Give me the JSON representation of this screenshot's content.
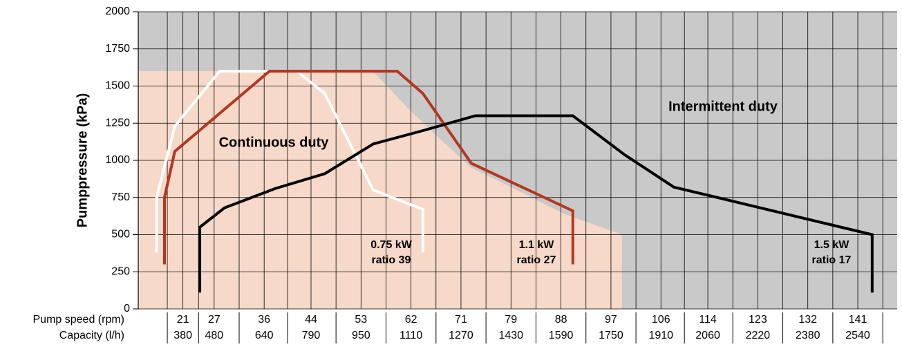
{
  "chart_data": {
    "type": "line",
    "ylabel": "Pumppressure (kPa)",
    "row_labels": [
      "Pump speed (rpm)",
      "Capacity (l/h)"
    ],
    "pump_speed": [
      "21",
      "27",
      "36",
      "44",
      "53",
      "62",
      "71",
      "79",
      "88",
      "97",
      "106",
      "114",
      "123",
      "132",
      "141"
    ],
    "capacity": [
      380,
      480,
      640,
      790,
      950,
      1110,
      1270,
      1430,
      1590,
      1750,
      1910,
      2060,
      2220,
      2380,
      2540
    ],
    "xlim": [
      237,
      2666
    ],
    "ylim": [
      0,
      2000
    ],
    "yticks": [
      0,
      250,
      500,
      750,
      1000,
      1250,
      1500,
      1750,
      2000
    ],
    "grid": true,
    "regions": [
      {
        "name": "Continuous duty",
        "color": "#f6d9c9",
        "x": [
          237,
          989,
          1100,
          1200,
          1303,
          1450,
          1600,
          1785,
          1785,
          237
        ],
        "y": [
          1600,
          1600,
          1350,
          1150,
          950,
          800,
          640,
          500,
          0,
          0
        ]
      },
      {
        "name": "Intermittent duty",
        "color": "#c9c9c9"
      }
    ],
    "series": [
      {
        "name": "0.75 kW",
        "note": "ratio 39",
        "color": "#ffffff",
        "x": [
          296,
          296,
          354,
          498,
          745,
          834,
          989,
          1148,
          1148
        ],
        "y": [
          380,
          750,
          1230,
          1600,
          1600,
          1450,
          800,
          670,
          380
        ]
      },
      {
        "name": "1.1 kW",
        "note": "ratio 27",
        "color": "#b5361f",
        "x": [
          321,
          321,
          354,
          657,
          1066,
          1148,
          1303,
          1628,
          1628
        ],
        "y": [
          300,
          750,
          1060,
          1600,
          1600,
          1450,
          980,
          660,
          300
        ]
      },
      {
        "name": "1.5 kW",
        "note": "ratio 17",
        "color": "#000000",
        "x": [
          434,
          434,
          513,
          675,
          834,
          989,
          1148,
          1316,
          1628,
          1792,
          1951,
          2586,
          2586
        ],
        "y": [
          110,
          550,
          680,
          810,
          910,
          1110,
          1200,
          1300,
          1300,
          1040,
          820,
          500,
          110
        ]
      }
    ]
  }
}
